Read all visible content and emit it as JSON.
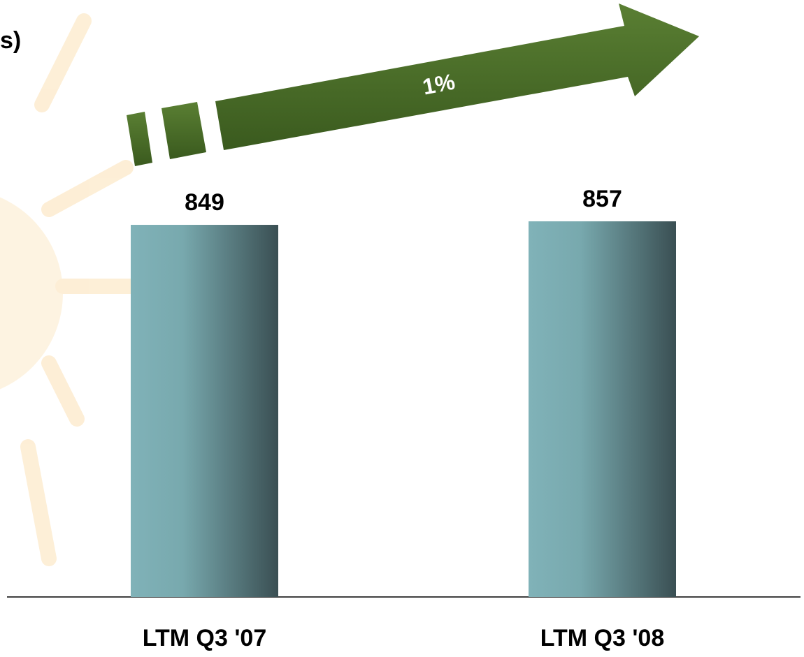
{
  "chart_data": {
    "type": "bar",
    "title": "s)",
    "annotation": "1%",
    "categories": [
      "LTM Q3 '07",
      "LTM Q3 '08"
    ],
    "values": [
      849,
      857
    ]
  }
}
